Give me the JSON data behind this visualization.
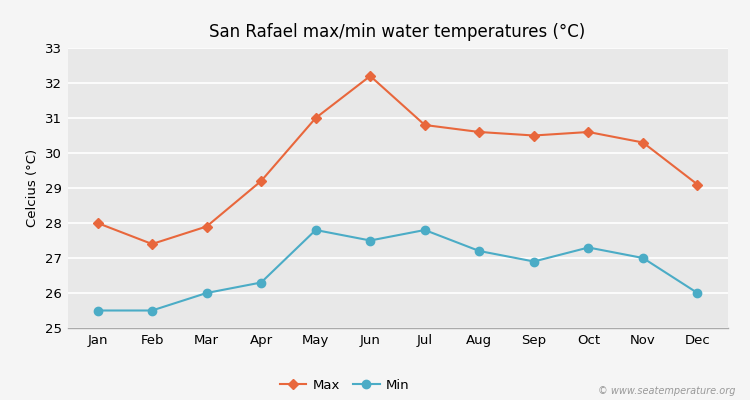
{
  "title": "San Rafael max/min water temperatures (°C)",
  "ylabel": "Celcius (°C)",
  "months": [
    "Jan",
    "Feb",
    "Mar",
    "Apr",
    "May",
    "Jun",
    "Jul",
    "Aug",
    "Sep",
    "Oct",
    "Nov",
    "Dec"
  ],
  "max_values": [
    28.0,
    27.4,
    27.9,
    29.2,
    31.0,
    32.2,
    30.8,
    30.6,
    30.5,
    30.6,
    30.3,
    29.1
  ],
  "min_values": [
    25.5,
    25.5,
    26.0,
    26.3,
    27.8,
    27.5,
    27.8,
    27.2,
    26.9,
    27.3,
    27.0,
    26.0
  ],
  "max_color": "#e8673c",
  "min_color": "#4bacc6",
  "ylim_min": 25,
  "ylim_max": 33,
  "yticks": [
    25,
    26,
    27,
    28,
    29,
    30,
    31,
    32,
    33
  ],
  "background_color": "#f5f5f5",
  "plot_bg_color": "#e8e8e8",
  "grid_color": "#ffffff",
  "watermark": "© www.seatemperature.org",
  "legend_labels": [
    "Max",
    "Min"
  ],
  "max_marker": "D",
  "min_marker": "o",
  "marker_size_max": 5,
  "marker_size_min": 6,
  "line_width": 1.5
}
